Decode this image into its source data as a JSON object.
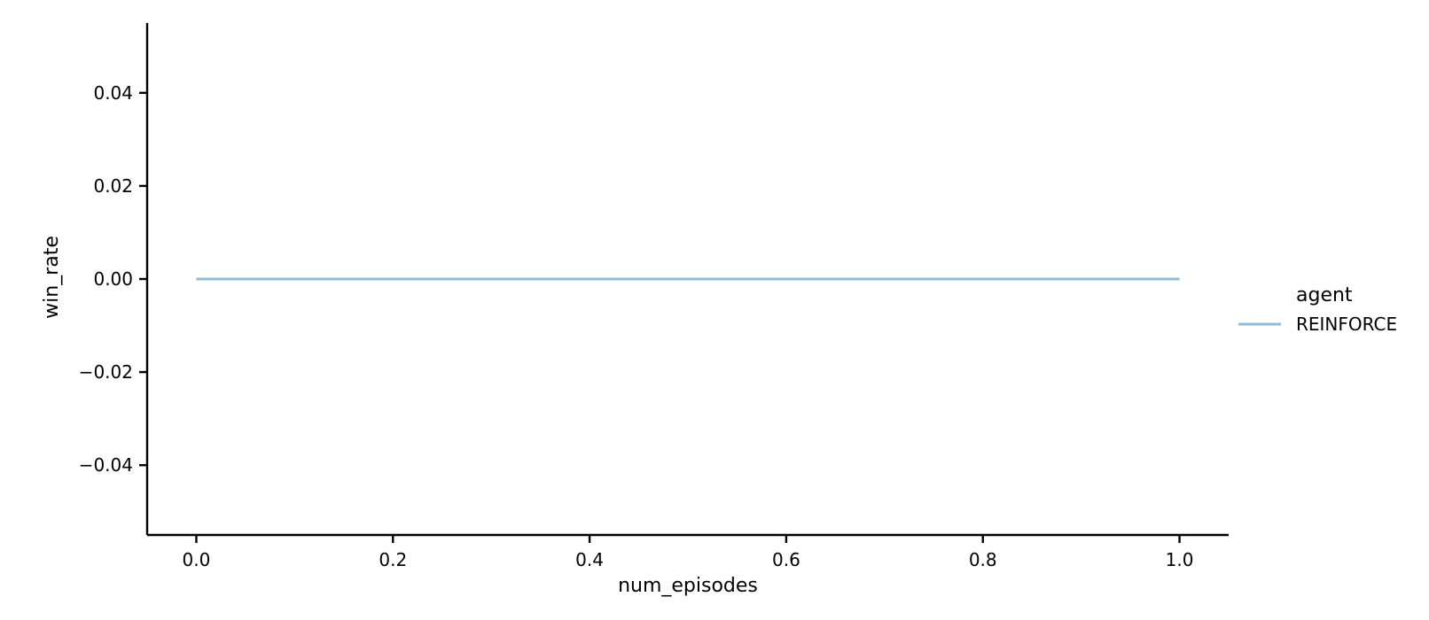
{
  "chart_data": {
    "type": "line",
    "title": "",
    "xlabel": "num_episodes",
    "ylabel": "win_rate",
    "xlim": [
      -0.05,
      1.05
    ],
    "ylim": [
      -0.055,
      0.055
    ],
    "xticks": [
      0.0,
      0.2,
      0.4,
      0.6,
      0.8,
      1.0
    ],
    "xtick_labels": [
      "0.0",
      "0.2",
      "0.4",
      "0.6",
      "0.8",
      "1.0"
    ],
    "yticks": [
      -0.04,
      -0.02,
      0.0,
      0.02,
      0.04
    ],
    "ytick_labels": [
      "−0.04",
      "−0.02",
      "0.00",
      "0.02",
      "0.04"
    ],
    "grid": false,
    "legend": {
      "title": "agent",
      "placement": "right"
    },
    "series": [
      {
        "name": "REINFORCE",
        "color": "#8fbcdb",
        "x": [
          0.0,
          1.0
        ],
        "y": [
          0.0,
          0.0
        ]
      }
    ]
  }
}
